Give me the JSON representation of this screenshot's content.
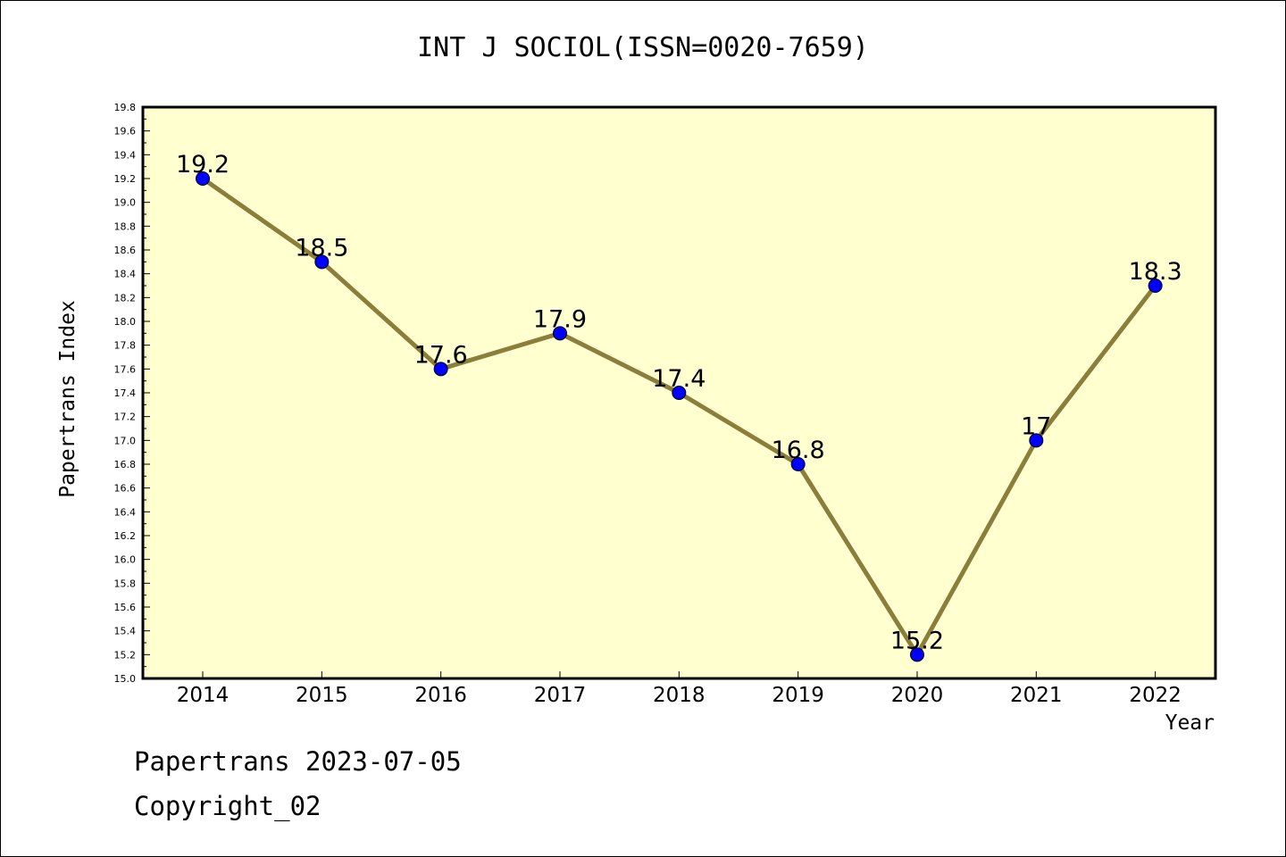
{
  "chart_data": {
    "type": "line",
    "title": "INT J SOCIOL(ISSN=0020-7659)",
    "xlabel": "Year",
    "ylabel": "Papertrans Index",
    "x": [
      "2014",
      "2015",
      "2016",
      "2017",
      "2018",
      "2019",
      "2020",
      "2021",
      "2022"
    ],
    "values": [
      19.2,
      18.5,
      17.6,
      17.9,
      17.4,
      16.8,
      15.2,
      17.0,
      18.3
    ],
    "data_labels": [
      "19.2",
      "18.5",
      "17.6",
      "17.9",
      "17.4",
      "16.8",
      "15.2",
      "17",
      "18.3"
    ],
    "ylim": [
      15.0,
      19.8
    ],
    "yticks": [
      "15.0",
      "15.2",
      "15.4",
      "15.6",
      "15.8",
      "16.0",
      "16.2",
      "16.4",
      "16.6",
      "16.8",
      "17.0",
      "17.2",
      "17.4",
      "17.6",
      "17.8",
      "18.0",
      "18.2",
      "18.4",
      "18.6",
      "18.8",
      "19.0",
      "19.2",
      "19.4",
      "19.6",
      "19.8"
    ],
    "grid": false,
    "colors": {
      "plot_background": "#ffffd0",
      "line": "#8b7d3a",
      "marker": "#0000ff"
    }
  },
  "footer": {
    "date_line": "Papertrans 2023-07-05",
    "copyright_line": "Copyright_02"
  }
}
